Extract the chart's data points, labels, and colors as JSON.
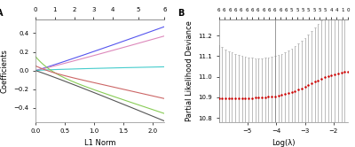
{
  "panel_a": {
    "label": "A",
    "xlabel": "L1 Norm",
    "ylabel": "Coefficients",
    "top_ticks": [
      0,
      1,
      2,
      3,
      4,
      5,
      6
    ],
    "xlim": [
      0.0,
      2.2
    ],
    "ylim": [
      -0.55,
      0.55
    ],
    "xticks": [
      0.0,
      0.5,
      1.0,
      1.5,
      2.0
    ],
    "yticks": [
      -0.4,
      -0.2,
      0.0,
      0.2,
      0.4
    ],
    "line_colors": [
      "#5555ee",
      "#dd88bb",
      "#44cccc",
      "#88cc55",
      "#cc6666",
      "#555555"
    ],
    "lines": [
      {
        "final": 0.47,
        "sign": 1,
        "curve": 1.05,
        "early_dip": 0
      },
      {
        "final": 0.37,
        "sign": 1,
        "curve": 1.05,
        "early_dip": 0
      },
      {
        "final": 0.04,
        "sign": 1,
        "curve": 0.7,
        "early_dip": 0
      },
      {
        "final": -0.46,
        "sign": -1,
        "curve": 1.0,
        "early_dip": 0.15
      },
      {
        "final": -0.3,
        "sign": -1,
        "curve": 1.05,
        "early_dip": 0.05
      },
      {
        "final": -0.54,
        "sign": -1,
        "curve": 1.05,
        "early_dip": 0
      }
    ],
    "n_points": 200
  },
  "panel_b": {
    "label": "B",
    "xlabel": "Log(λ)",
    "ylabel": "Partial Likelihood Deviance",
    "xlim": [
      -6.0,
      -1.5
    ],
    "ylim": [
      10.78,
      11.28
    ],
    "xticks": [
      -5,
      -4,
      -3,
      -2
    ],
    "yticks": [
      10.8,
      10.9,
      11.0,
      11.1,
      11.2
    ],
    "vline_x": -4.05,
    "dot_color": "#cc0000",
    "error_color": "#bbbbbb",
    "n_points": 40,
    "top_labels": [
      "6",
      "6",
      "6",
      "6",
      "6",
      "6",
      "6",
      "6",
      "6",
      "6",
      "6",
      "6",
      "6",
      "5",
      "5",
      "5",
      "5",
      "5",
      "5",
      "5",
      "4",
      "4",
      "1",
      "0"
    ]
  },
  "background_color": "#ffffff",
  "axis_color": "#888888",
  "font_size": 6
}
